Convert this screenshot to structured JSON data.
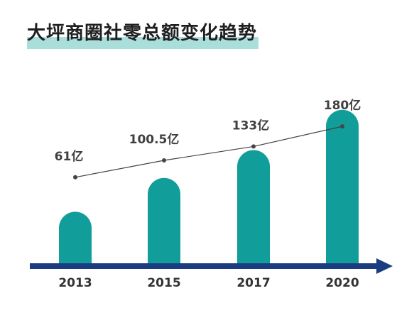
{
  "title": "大坪商圈社零总额变化趋势",
  "colors": {
    "bar": "#119e9b",
    "axis": "#1c3c82",
    "line": "#444444",
    "highlight": "#a9dedb"
  },
  "chart_data": {
    "type": "bar",
    "title": "大坪商圈社零总额变化趋势",
    "categories": [
      "2013",
      "2015",
      "2017",
      "2020"
    ],
    "values": [
      61,
      100.5,
      133,
      180
    ],
    "value_labels": [
      "61亿",
      "100.5亿",
      "133亿",
      "180亿"
    ],
    "unit": "亿",
    "xlabel": "",
    "ylabel": "",
    "ylim": [
      0,
      200
    ],
    "grid": false,
    "legend": "none",
    "overlay_line": true
  }
}
